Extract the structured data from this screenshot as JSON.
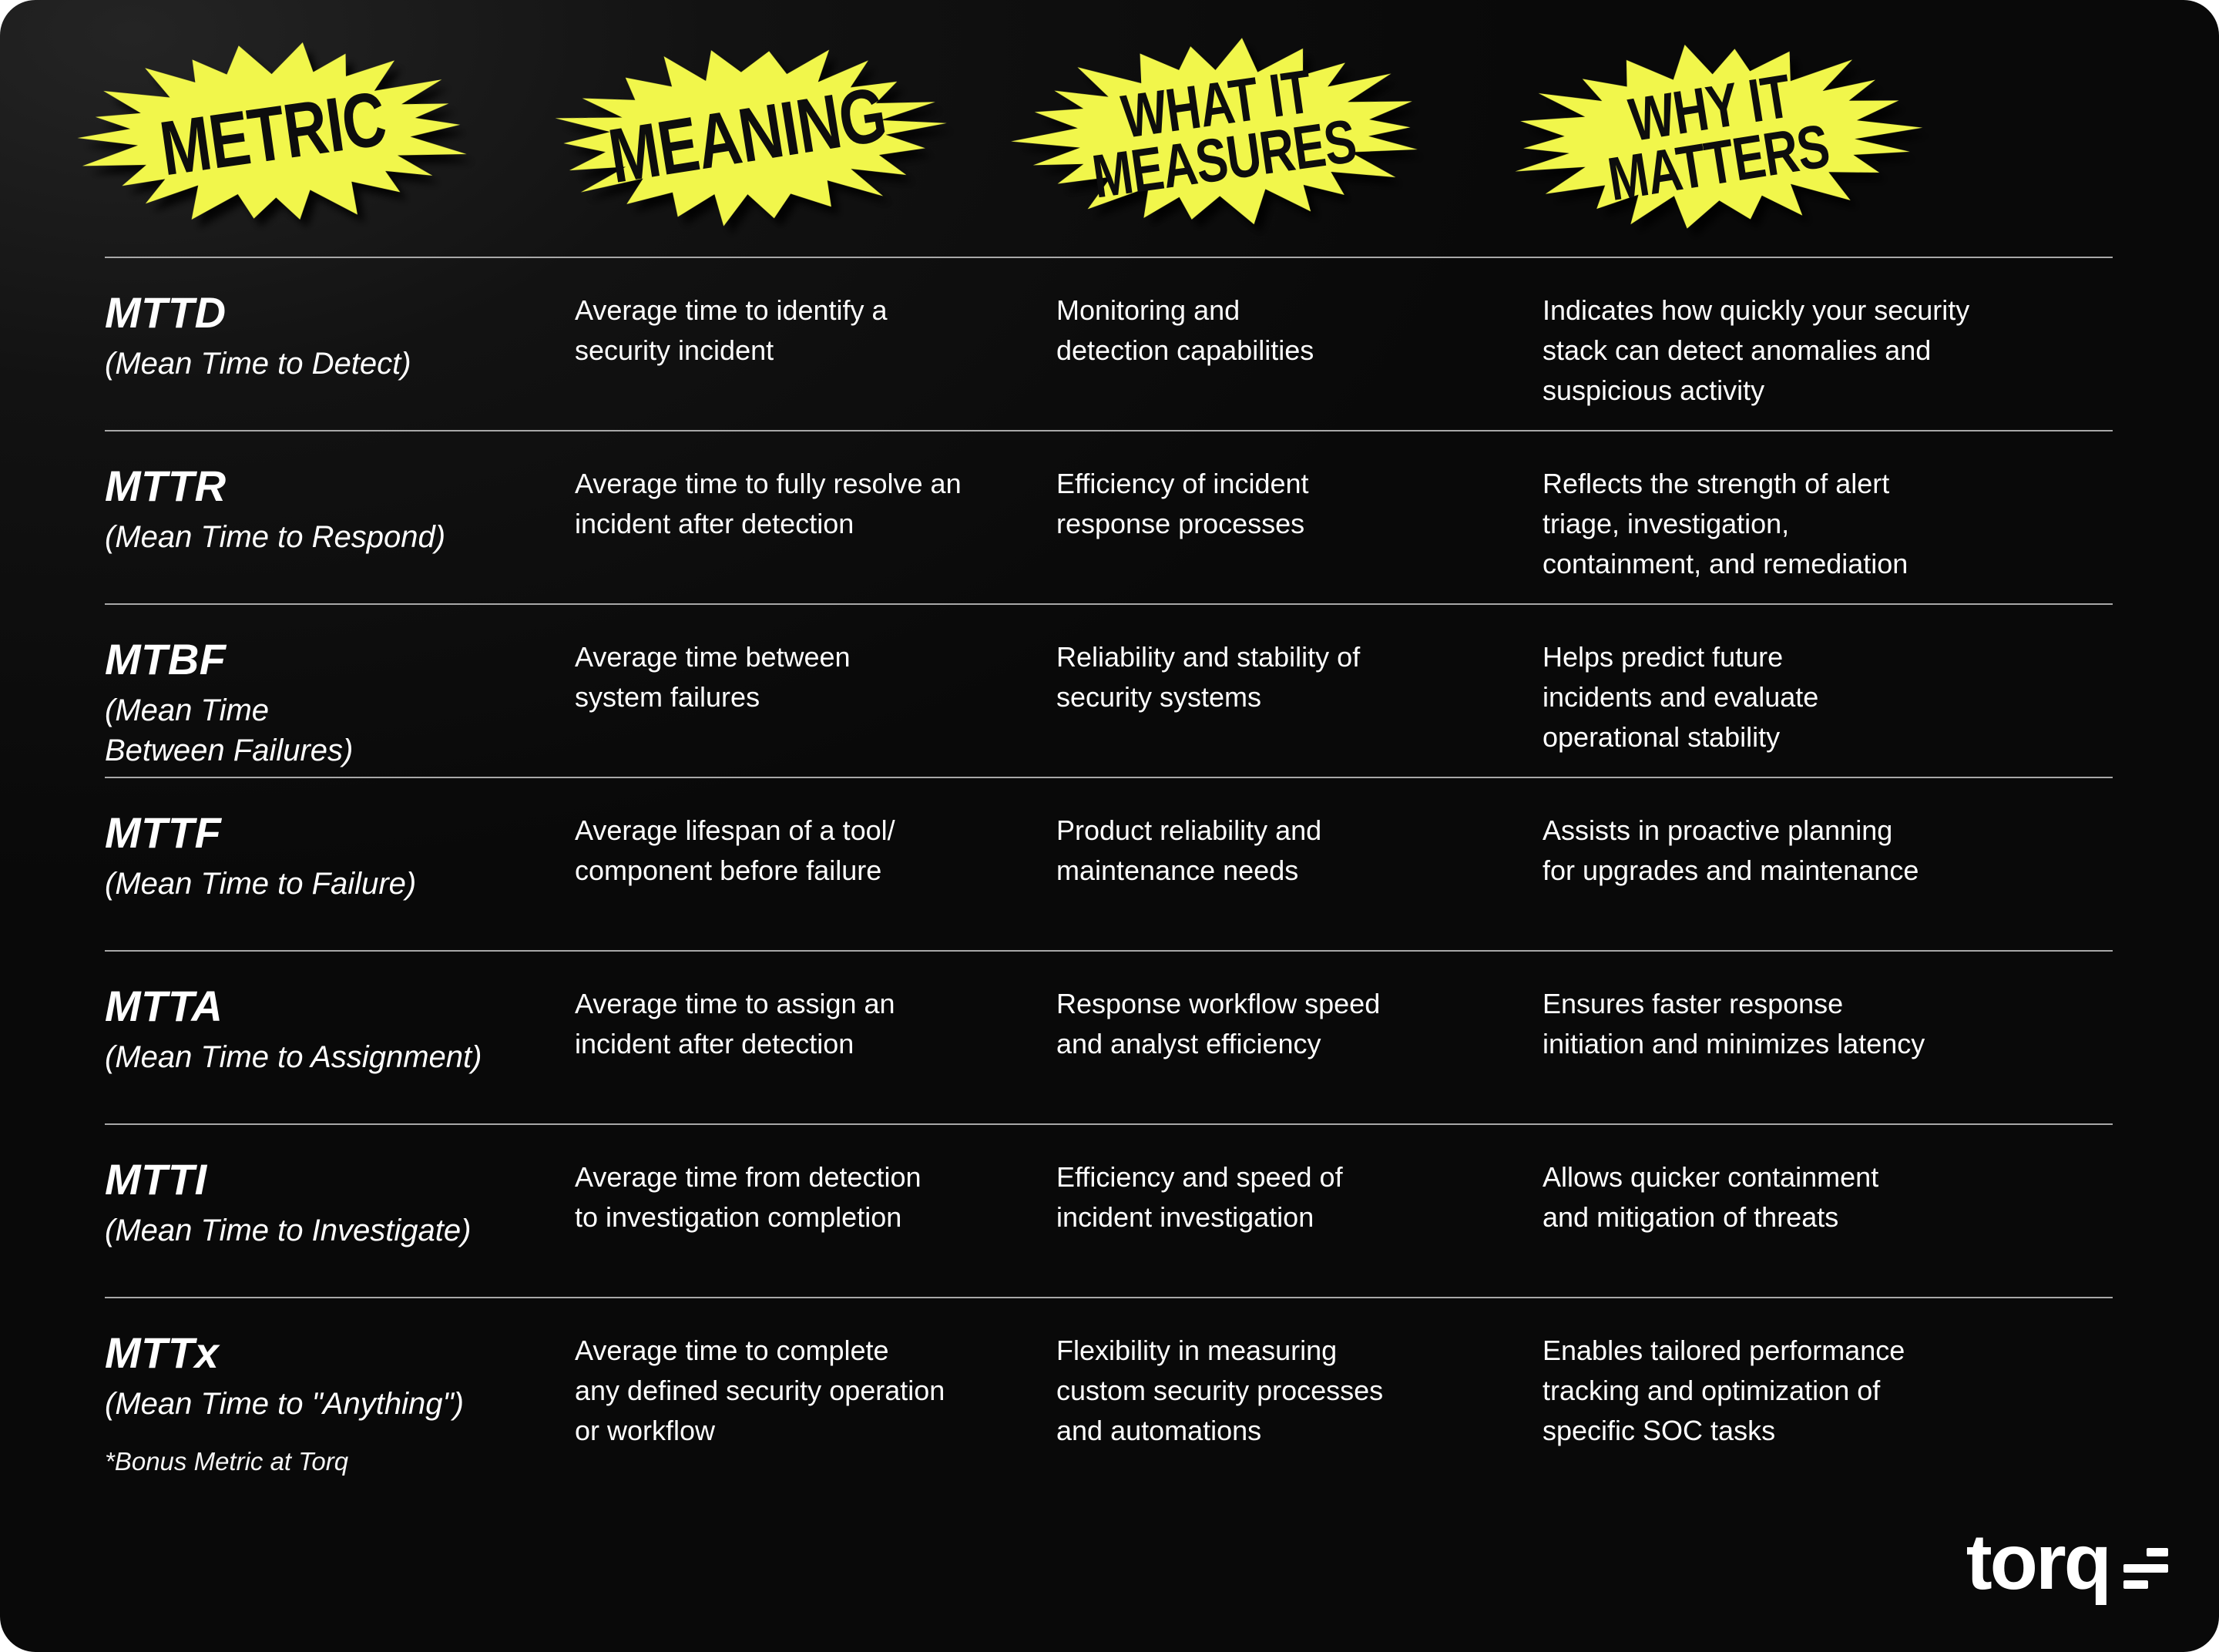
{
  "page": {
    "accent_yellow": "#F1F64B",
    "divider_gray": "#A8A8A8",
    "background": "#0D0D0D"
  },
  "headers": [
    {
      "label": "METRIC"
    },
    {
      "label": "MEANING"
    },
    {
      "label": "WHAT IT\nMEASURES"
    },
    {
      "label": "WHY IT\nMATTERS"
    }
  ],
  "rows": [
    {
      "metric": "MTTD",
      "metric_full": "(Mean Time to Detect)",
      "meaning": "Average time to identify a\nsecurity incident",
      "measures": "Monitoring and\ndetection capabilities",
      "why": "Indicates how quickly your security\nstack can detect anomalies and\nsuspicious activity"
    },
    {
      "metric": "MTTR",
      "metric_full": "(Mean Time to Respond)",
      "meaning": "Average time to fully resolve an\nincident after detection",
      "measures": "Efficiency of incident\nresponse processes",
      "why": "Reflects the strength of alert\ntriage, investigation,\ncontainment, and remediation"
    },
    {
      "metric": "MTBF",
      "metric_full": "(Mean Time\nBetween Failures)",
      "meaning": "Average time between\nsystem failures",
      "measures": "Reliability and stability of\nsecurity systems",
      "why": "Helps predict future\nincidents and evaluate\noperational stability"
    },
    {
      "metric": "MTTF",
      "metric_full": "(Mean Time to Failure)",
      "meaning": "Average lifespan of a tool/\ncomponent before failure",
      "measures": "Product reliability and\nmaintenance needs",
      "why": "Assists in proactive planning\nfor upgrades and maintenance"
    },
    {
      "metric": "MTTA",
      "metric_full": "(Mean Time to Assignment)",
      "meaning": "Average time to assign an\nincident after detection",
      "measures": "Response workflow speed\nand analyst efficiency",
      "why": "Ensures faster response\ninitiation and minimizes latency"
    },
    {
      "metric": "MTTI",
      "metric_full": "(Mean Time to Investigate)",
      "meaning": "Average time from detection\nto investigation completion",
      "measures": "Efficiency and speed of\nincident investigation",
      "why": "Allows quicker containment\nand mitigation of threats"
    },
    {
      "metric": "MTTx",
      "metric_full": "(Mean Time to \"Anything\")",
      "bonus_note": "*Bonus Metric at Torq",
      "meaning": "Average time to complete\nany defined security operation\nor workflow",
      "measures": "Flexibility in measuring\ncustom security processes\nand automations",
      "why": "Enables tailored performance\ntracking and optimization of\nspecific SOC tasks"
    }
  ],
  "footer": {
    "logo_text": "torq"
  }
}
